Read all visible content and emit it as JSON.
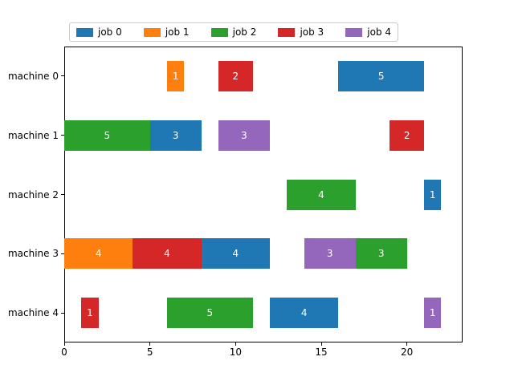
{
  "figure": {
    "background": "#ffffff"
  },
  "chart_data": {
    "type": "bar",
    "subtype": "horizontal-gantt",
    "title": "",
    "xlabel": "",
    "ylabel": "",
    "xlim": [
      0,
      23.25
    ],
    "xticks": [
      "0",
      "5",
      "10",
      "15",
      "20"
    ],
    "xtick_values": [
      0,
      5,
      10,
      15,
      20
    ],
    "grid": false,
    "legend": {
      "position": "top"
    },
    "machines": [
      "machine 0",
      "machine 1",
      "machine 2",
      "machine 3",
      "machine 4"
    ],
    "jobs": [
      {
        "name": "job 0",
        "color": "#1f77b4"
      },
      {
        "name": "job 1",
        "color": "#ff7f0e"
      },
      {
        "name": "job 2",
        "color": "#2ca02c"
      },
      {
        "name": "job 3",
        "color": "#d62728"
      },
      {
        "name": "job 4",
        "color": "#9467bd"
      }
    ],
    "tasks": [
      {
        "machine": 0,
        "job": 1,
        "start": 6,
        "duration": 1,
        "label": "1"
      },
      {
        "machine": 0,
        "job": 3,
        "start": 9,
        "duration": 2,
        "label": "2"
      },
      {
        "machine": 0,
        "job": 0,
        "start": 16,
        "duration": 5,
        "label": "5"
      },
      {
        "machine": 1,
        "job": 2,
        "start": 0,
        "duration": 5,
        "label": "5"
      },
      {
        "machine": 1,
        "job": 0,
        "start": 5,
        "duration": 3,
        "label": "3"
      },
      {
        "machine": 1,
        "job": 4,
        "start": 9,
        "duration": 3,
        "label": "3"
      },
      {
        "machine": 1,
        "job": 3,
        "start": 19,
        "duration": 2,
        "label": "2"
      },
      {
        "machine": 2,
        "job": 2,
        "start": 13,
        "duration": 4,
        "label": "4"
      },
      {
        "machine": 2,
        "job": 0,
        "start": 21,
        "duration": 1,
        "label": "1"
      },
      {
        "machine": 3,
        "job": 1,
        "start": 0,
        "duration": 4,
        "label": "4"
      },
      {
        "machine": 3,
        "job": 3,
        "start": 4,
        "duration": 4,
        "label": "4"
      },
      {
        "machine": 3,
        "job": 0,
        "start": 8,
        "duration": 4,
        "label": "4"
      },
      {
        "machine": 3,
        "job": 4,
        "start": 14,
        "duration": 3,
        "label": "3"
      },
      {
        "machine": 3,
        "job": 2,
        "start": 17,
        "duration": 3,
        "label": "3"
      },
      {
        "machine": 4,
        "job": 3,
        "start": 1,
        "duration": 1,
        "label": "1"
      },
      {
        "machine": 4,
        "job": 2,
        "start": 6,
        "duration": 5,
        "label": "5"
      },
      {
        "machine": 4,
        "job": 0,
        "start": 12,
        "duration": 4,
        "label": "4"
      },
      {
        "machine": 4,
        "job": 4,
        "start": 21,
        "duration": 1,
        "label": "1"
      }
    ]
  }
}
